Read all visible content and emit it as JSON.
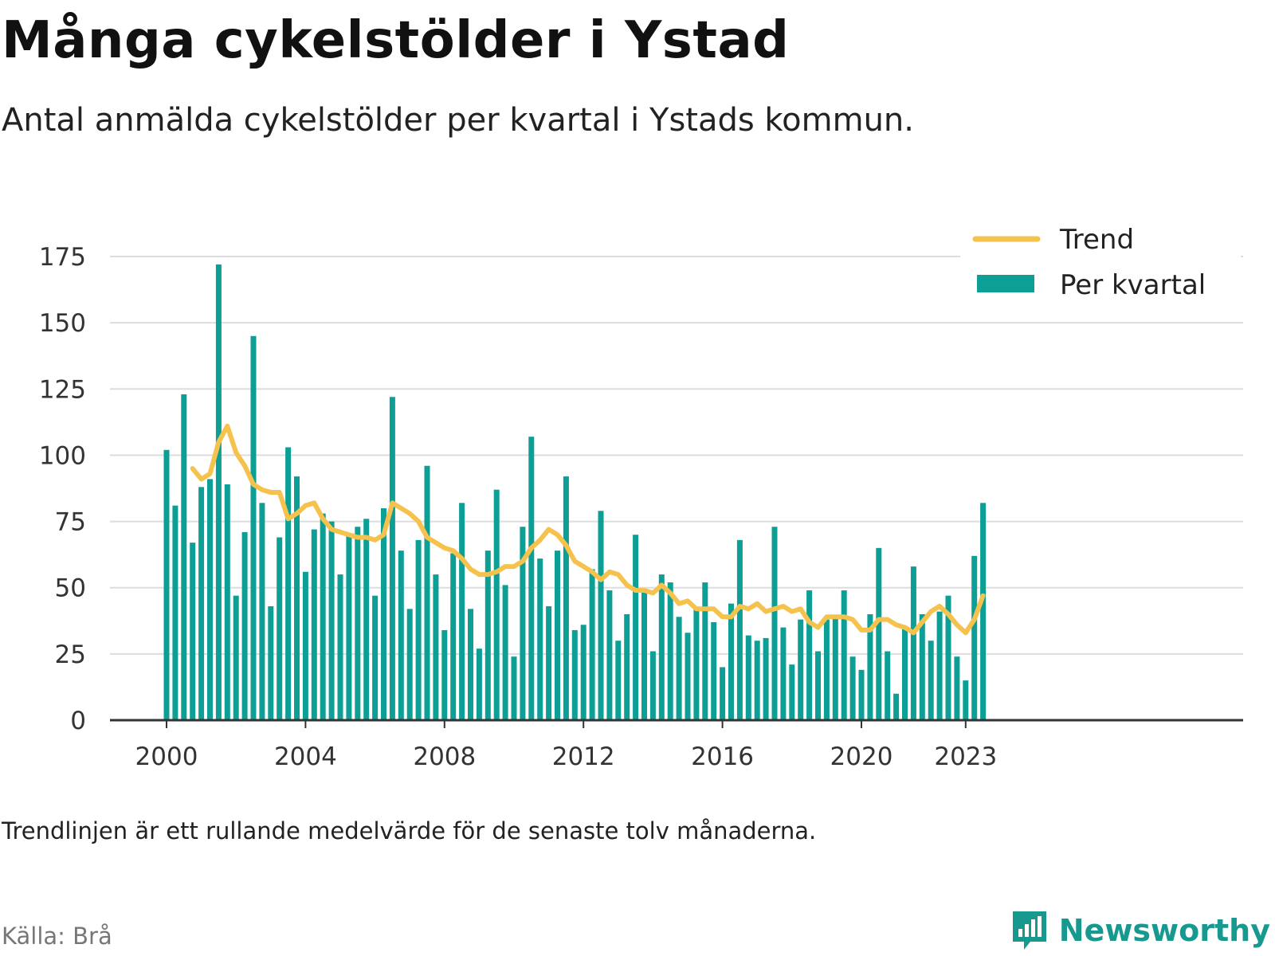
{
  "colors": {
    "bar": "#0d9e95",
    "trend": "#f6c24e",
    "grid": "#dddddd",
    "axis": "#333333",
    "brand": "#17998f"
  },
  "header": {
    "title": "Många cykelstölder i Ystad",
    "subtitle": "Antal anmälda cykelstölder per kvartal i Ystads kommun."
  },
  "footer": {
    "note": "Trendlinjen är ett rullande medelvärde för de senaste tolv månaderna.",
    "source": "Källa: Brå",
    "brand": "Newsworthy",
    "brand_icon": "bar-chart-bubble-icon"
  },
  "chart_data": {
    "type": "bar",
    "start_year": 2000,
    "title": "",
    "xlabel": "",
    "ylabel": "",
    "ylim": [
      0,
      175
    ],
    "yticks": [
      0,
      25,
      50,
      75,
      100,
      125,
      150,
      175
    ],
    "xticks": [
      "2000",
      "2004",
      "2008",
      "2012",
      "2016",
      "2020",
      "2023"
    ],
    "xticks_year": [
      2000,
      2004,
      2008,
      2012,
      2016,
      2020,
      2023
    ],
    "grid": true,
    "legend_position": "top-right",
    "series": [
      {
        "name": "Per kvartal",
        "kind": "bar",
        "values": [
          102,
          81,
          123,
          67,
          88,
          91,
          172,
          89,
          47,
          71,
          145,
          82,
          43,
          69,
          103,
          92,
          56,
          72,
          78,
          75,
          55,
          70,
          73,
          76,
          47,
          80,
          122,
          64,
          42,
          68,
          96,
          55,
          34,
          63,
          82,
          42,
          27,
          64,
          87,
          51,
          24,
          73,
          107,
          61,
          43,
          64,
          92,
          34,
          36,
          57,
          79,
          49,
          30,
          40,
          70,
          49,
          26,
          55,
          52,
          39,
          33,
          42,
          52,
          37,
          20,
          44,
          68,
          32,
          30,
          31,
          73,
          35,
          21,
          38,
          49,
          26,
          38,
          39,
          49,
          24,
          19,
          40,
          65,
          26,
          10,
          35,
          58,
          40,
          30,
          41,
          47,
          24,
          15,
          62,
          82
        ]
      },
      {
        "name": "Trend",
        "kind": "line",
        "start_index": 3,
        "values": [
          95,
          91,
          93,
          105,
          111,
          101,
          96,
          89,
          87,
          86,
          86,
          76,
          78,
          81,
          82,
          76,
          72,
          71,
          70,
          69,
          69,
          68,
          70,
          82,
          80,
          78,
          75,
          69,
          67,
          65,
          64,
          61,
          57,
          55,
          55,
          56,
          58,
          58,
          60,
          65,
          68,
          72,
          70,
          66,
          60,
          58,
          56,
          53,
          56,
          55,
          51,
          49,
          49,
          48,
          51,
          48,
          44,
          45,
          42,
          42,
          42,
          39,
          39,
          43,
          42,
          44,
          41,
          42,
          43,
          41,
          42,
          37,
          35,
          39,
          39,
          39,
          38,
          34,
          34,
          38,
          38,
          36,
          35,
          33,
          37,
          41,
          43,
          40,
          36,
          33,
          38,
          47
        ]
      }
    ]
  }
}
